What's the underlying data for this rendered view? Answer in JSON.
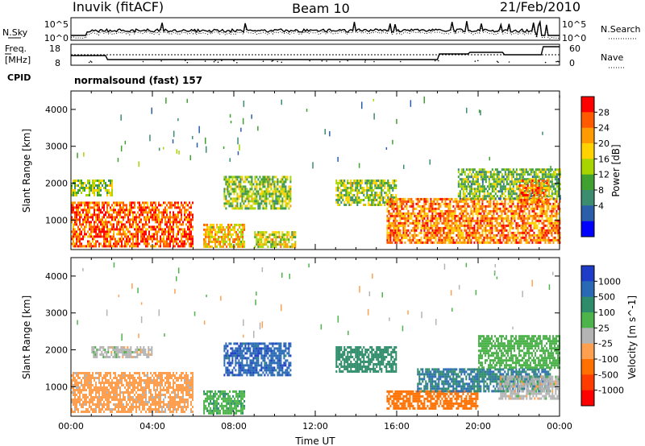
{
  "header": {
    "station": "Inuvik (fitACF)",
    "beam": "Beam 10",
    "date": "21/Feb/2010"
  },
  "top_panels": {
    "nsky_label": "N.Sky",
    "nsky_ticks": [
      "10^5",
      "10^0"
    ],
    "nsearch_label": "N.Search",
    "nsearch_ticks": [
      "10^5",
      "10^0"
    ],
    "freq_label": "Freq.",
    "freq_unit": "[MHz]",
    "freq_ticks": [
      "18",
      "8"
    ],
    "nave_label": "Nave",
    "nave_ticks": [
      "60",
      "0"
    ],
    "cpid_label": "CPID",
    "cpid_value": "normalsound (fast) 157"
  },
  "chart_data": [
    {
      "type": "heatmap",
      "panel": "power",
      "ylabel": "Slant Range [km]",
      "xlabel": "",
      "ylim": [
        200,
        4500
      ],
      "yticks": [
        1000,
        2000,
        3000,
        4000
      ],
      "colorbar_label": "Power [dB]",
      "colorbar_ticks": [
        "28",
        "24",
        "20",
        "16",
        "12",
        "8",
        "4"
      ],
      "colorbar_colors": [
        "#ff0000",
        "#ff5a00",
        "#ff9a00",
        "#ffd200",
        "#a8d400",
        "#40a030",
        "#3c8c70",
        "#2a5ea8",
        "#0000ff"
      ],
      "echo_regions": [
        {
          "t0": 0.0,
          "t1": 6.0,
          "r0": 300,
          "r1": 1500,
          "value": 26
        },
        {
          "t0": 0.0,
          "t1": 2.0,
          "r0": 1700,
          "r1": 2100,
          "value": 14
        },
        {
          "t0": 6.5,
          "t1": 8.5,
          "r0": 300,
          "r1": 900,
          "value": 20
        },
        {
          "t0": 7.5,
          "t1": 10.8,
          "r0": 1300,
          "r1": 2200,
          "value": 14
        },
        {
          "t0": 9.0,
          "t1": 11.0,
          "r0": 300,
          "r1": 700,
          "value": 18
        },
        {
          "t0": 13.0,
          "t1": 16.0,
          "r0": 1400,
          "r1": 2100,
          "value": 14
        },
        {
          "t0": 15.5,
          "t1": 24.0,
          "r0": 400,
          "r1": 1600,
          "value": 24
        },
        {
          "t0": 19.0,
          "t1": 24.0,
          "r0": 1600,
          "r1": 2400,
          "value": 12
        },
        {
          "t0": 22.0,
          "t1": 23.5,
          "r0": 1500,
          "r1": 2100,
          "value": 24
        }
      ]
    },
    {
      "type": "heatmap",
      "panel": "velocity",
      "ylabel": "Slant Range [km]",
      "xlabel": "Time UT",
      "ylim": [
        200,
        4500
      ],
      "yticks": [
        1000,
        2000,
        3000,
        4000
      ],
      "xticks": [
        "00:00",
        "04:00",
        "08:00",
        "12:00",
        "16:00",
        "20:00",
        "00:00"
      ],
      "colorbar_label": "Velocity [m s^-1]",
      "colorbar_ticks": [
        "1000",
        "500",
        "100",
        "25",
        "-25",
        "-100",
        "-500",
        "-1000"
      ],
      "colorbar_colors": [
        "#1e3cc8",
        "#2a6ab4",
        "#2e8c6a",
        "#4cb44a",
        "#b4b4b4",
        "#ffa050",
        "#ff7000",
        "#ff3c00",
        "#ff0000"
      ],
      "echo_regions": [
        {
          "t0": 0.0,
          "t1": 6.0,
          "r0": 300,
          "r1": 1400,
          "value": -50
        },
        {
          "t0": 1.0,
          "t1": 4.0,
          "r0": 1800,
          "r1": 2100,
          "value": 0
        },
        {
          "t0": 6.5,
          "t1": 8.5,
          "r0": 300,
          "r1": 900,
          "value": 80
        },
        {
          "t0": 7.5,
          "t1": 10.8,
          "r0": 1300,
          "r1": 2200,
          "value": 800
        },
        {
          "t0": 13.0,
          "t1": 16.0,
          "r0": 1400,
          "r1": 2100,
          "value": 200
        },
        {
          "t0": 15.5,
          "t1": 20.0,
          "r0": 400,
          "r1": 900,
          "value": -300
        },
        {
          "t0": 17.0,
          "t1": 23.5,
          "r0": 900,
          "r1": 1500,
          "value": 500
        },
        {
          "t0": 20.0,
          "t1": 24.0,
          "r0": 1500,
          "r1": 2400,
          "value": 60
        },
        {
          "t0": 21.0,
          "t1": 24.0,
          "r0": 700,
          "r1": 1300,
          "value": 0
        }
      ]
    }
  ],
  "colors": {
    "axis": "#000000",
    "background": "#ffffff"
  }
}
